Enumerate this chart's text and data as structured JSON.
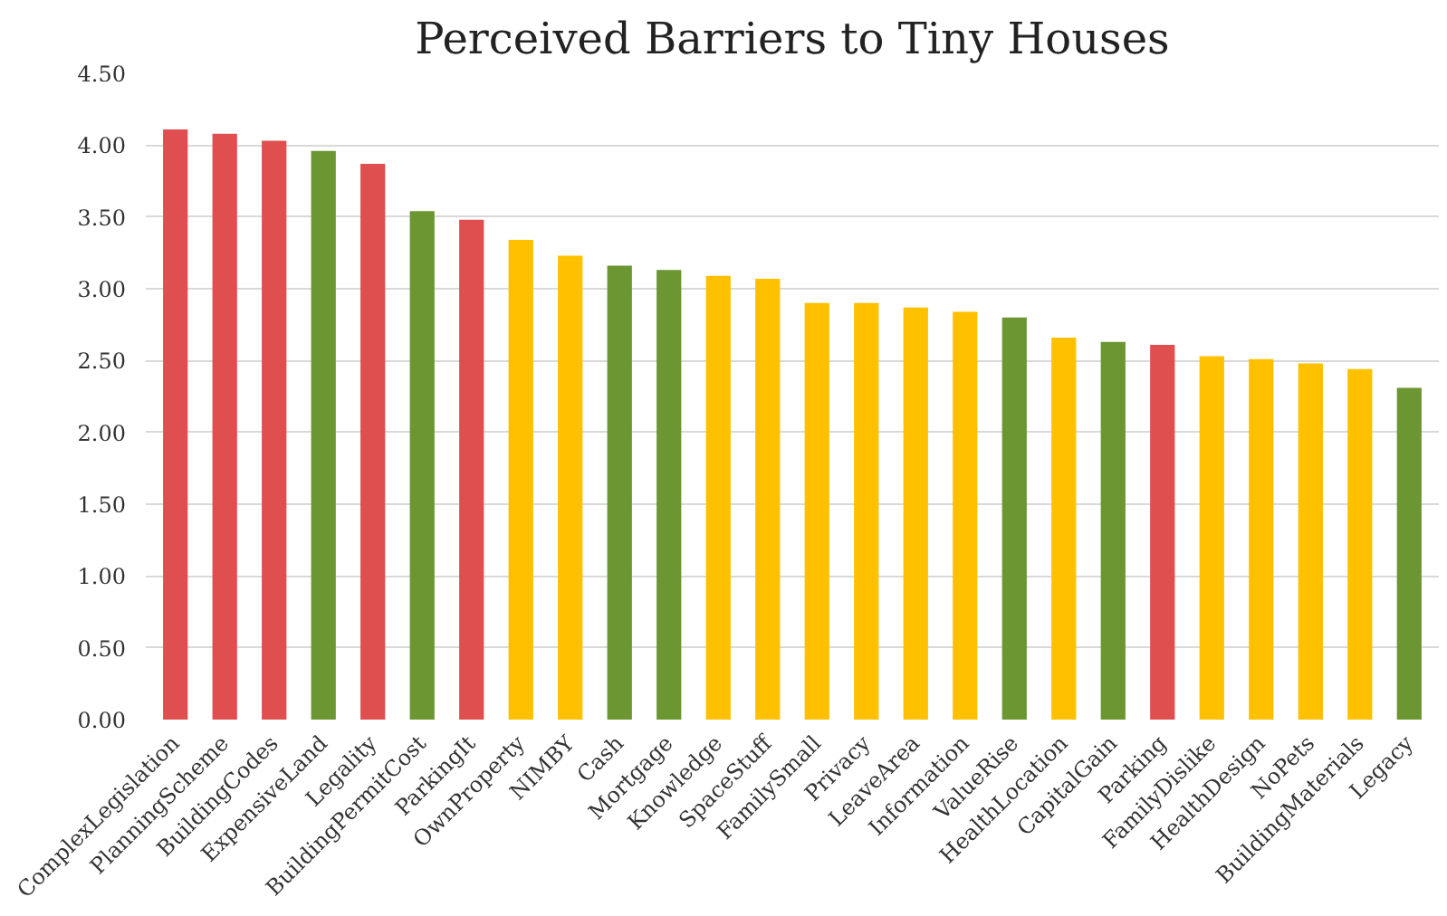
{
  "chart_data": {
    "type": "bar",
    "title": "Perceived Barriers to Tiny Houses",
    "categories": [
      "ComplexLegislation",
      "PlanningScheme",
      "BuildingCodes",
      "ExpensiveLand",
      "Legality",
      "BuildingPermitCost",
      "ParkingIt",
      "OwnProperty",
      "NIMBY",
      "Cash",
      "Mortgage",
      "Knowledge",
      "SpaceStuff",
      "FamilySmall",
      "Privacy",
      "LeaveArea",
      "Information",
      "ValueRise",
      "HealthLocation",
      "CapitalGain",
      "Parking",
      "FamilyDislike",
      "HealthDesign",
      "NoPets",
      "BuildingMaterials",
      "Legacy"
    ],
    "values": [
      4.11,
      4.08,
      4.03,
      3.96,
      3.87,
      3.54,
      3.48,
      3.34,
      3.23,
      3.16,
      3.13,
      3.09,
      3.07,
      2.9,
      2.9,
      2.87,
      2.84,
      2.8,
      2.66,
      2.63,
      2.61,
      2.53,
      2.51,
      2.48,
      2.44,
      2.31
    ],
    "colors": [
      "#df4f4f",
      "#df4f4f",
      "#df4f4f",
      "#6b9631",
      "#df4f4f",
      "#6b9631",
      "#df4f4f",
      "#ffc000",
      "#ffc000",
      "#6b9631",
      "#6b9631",
      "#ffc000",
      "#ffc000",
      "#ffc000",
      "#ffc000",
      "#ffc000",
      "#ffc000",
      "#6b9631",
      "#ffc000",
      "#6b9631",
      "#df4f4f",
      "#ffc000",
      "#ffc000",
      "#ffc000",
      "#ffc000",
      "#6b9631"
    ],
    "ylim": [
      0,
      4.5
    ],
    "yticks": [
      {
        "value": 0,
        "label": "0.00"
      },
      {
        "value": 0.5,
        "label": "0.50"
      },
      {
        "value": 1,
        "label": "1.00"
      },
      {
        "value": 1.5,
        "label": "1.50"
      },
      {
        "value": 2,
        "label": "2.00"
      },
      {
        "value": 2.5,
        "label": "2.50"
      },
      {
        "value": 3,
        "label": "3.00"
      },
      {
        "value": 3.5,
        "label": "3.50"
      },
      {
        "value": 4,
        "label": "4.00"
      },
      {
        "value": 4.5,
        "label": "4.50"
      }
    ],
    "grid": "y"
  }
}
